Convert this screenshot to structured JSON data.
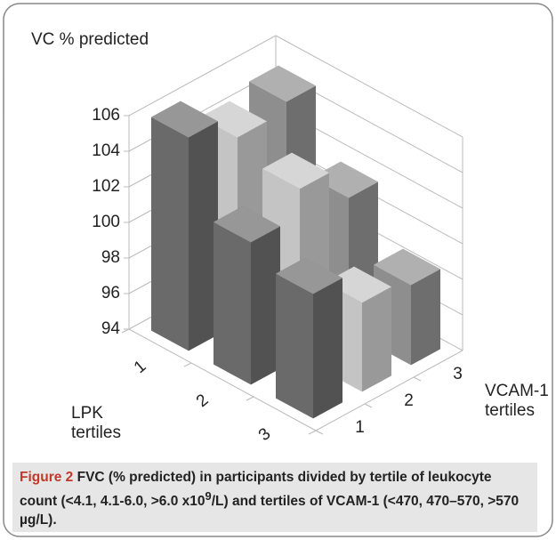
{
  "chart_data": {
    "type": "bar3d",
    "title": "VC % predicted",
    "x_label": [
      "LPK",
      "tertiles"
    ],
    "z_label": [
      "VCAM-1",
      "tertiles"
    ],
    "categories": [
      "1",
      "2",
      "3"
    ],
    "series": [
      {
        "name": "1",
        "color": "#6a6a6a",
        "values": [
          106,
          102,
          101
        ]
      },
      {
        "name": "2",
        "color": "#c4c4c4",
        "values": [
          104.5,
          103.5,
          99
        ]
      },
      {
        "name": "3",
        "color": "#8e8e8e",
        "values": [
          105,
          101.5,
          98.5
        ]
      }
    ],
    "ylim": [
      94,
      106
    ],
    "yticks": [
      94,
      96,
      98,
      100,
      102,
      104,
      106
    ],
    "grid": true
  },
  "caption": {
    "label": "Figure 2",
    "text_before": "FVC (% predicted) in participants divided by tertile of leukocyte count (<4.1, 4.1-6.0, >6.0 x10",
    "superscript": "9",
    "text_after": "/L) and tertiles of VCAM-1 (<470, 470–570, >570 µg/L)."
  }
}
